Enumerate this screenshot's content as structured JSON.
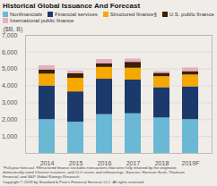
{
  "chart_data": {
    "type": "bar",
    "stacked": true,
    "title": "Historical Global Issuance And Forecast",
    "ylabel": "($B, B)",
    "categories": [
      "2014",
      "2015",
      "2016",
      "2017",
      "2018",
      "2019F"
    ],
    "series": [
      {
        "name": "Nonfinancials",
        "color": "#6bb8d4",
        "values": [
          2000,
          1850,
          2300,
          2350,
          2100,
          2000
        ]
      },
      {
        "name": "Financial services",
        "color": "#1b3a6b",
        "values": [
          2000,
          1800,
          2100,
          2000,
          1800,
          1950
        ]
      },
      {
        "name": "Structured finance§",
        "color": "#f5a800",
        "values": [
          700,
          800,
          700,
          700,
          650,
          700
        ]
      },
      {
        "name": "U.S. public finance",
        "color": "#3d2000",
        "values": [
          250,
          280,
          220,
          350,
          200,
          200
        ]
      },
      {
        "name": "International public finance",
        "color": "#e8afc0",
        "values": [
          250,
          150,
          250,
          200,
          100,
          220
        ]
      }
    ],
    "ylim": [
      0,
      7000
    ],
    "yticks": [
      {
        "value": 1000,
        "label": "1,000"
      },
      {
        "value": 2000,
        "label": "2,000"
      },
      {
        "value": 3000,
        "label": "3,000"
      },
      {
        "value": 4000,
        "label": "4,000"
      },
      {
        "value": 5000,
        "label": "5,000"
      },
      {
        "value": 6000,
        "label": "6,000"
      },
      {
        "value": 7000,
        "label": "7,000"
      }
    ],
    "grid": true,
    "legend": "upper left",
    "footnote": "*Full-year forecast. §Structured finance excludes transactions that were fully retained by the originator,\ndomestically rated Chinese issuance, and CLO resets and refinancings. Sources: Harrison Scott, Thomson\nFinancial, and S&P Global Ratings Research.\nCopyright © 2019 by Standard & Poor's Financial Services LLC. All rights reserved."
  }
}
